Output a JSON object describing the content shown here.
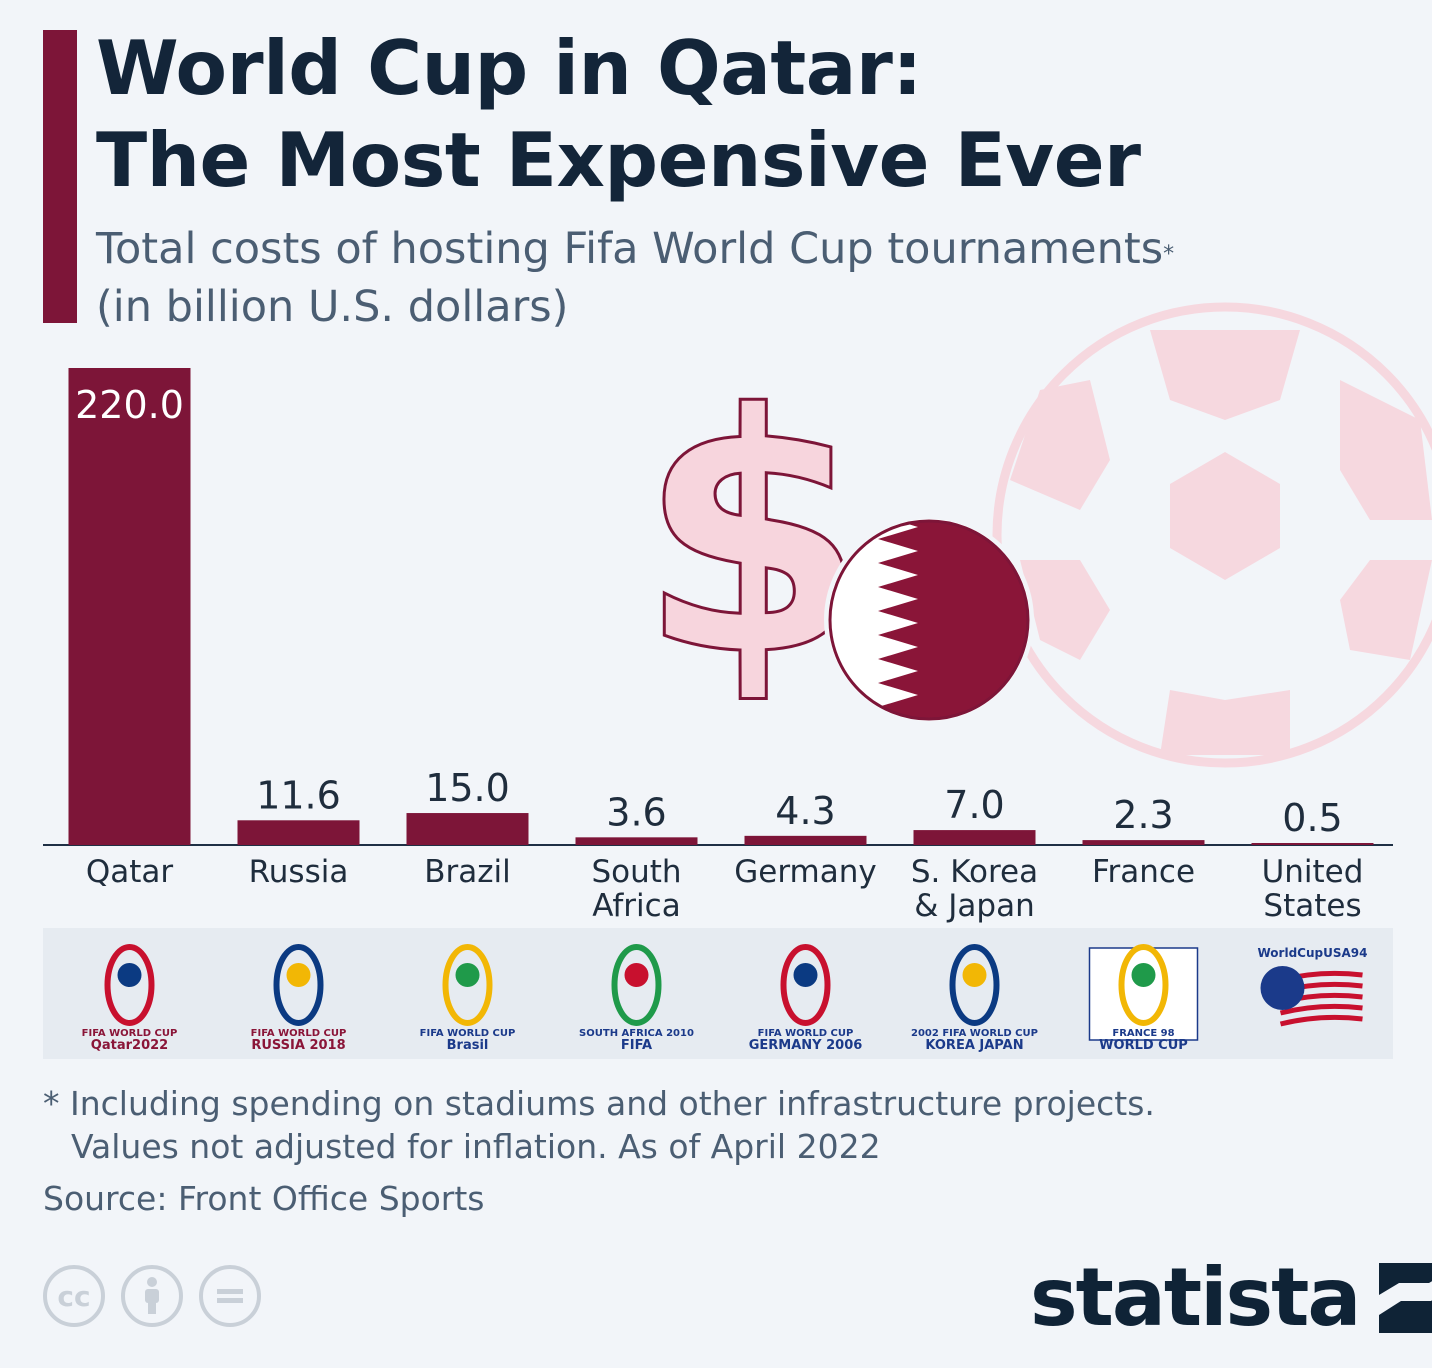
{
  "header": {
    "title_line1": "World Cup in Qatar:",
    "title_line2": "The Most Expensive Ever",
    "subtitle_line1": "Total costs of hosting Fifa World Cup tournaments",
    "subtitle_marker": "*",
    "subtitle_line2": "(in billion U.S. dollars)"
  },
  "chart_data": {
    "type": "bar",
    "title": "World Cup in Qatar: The Most Expensive Ever",
    "subtitle": "Total costs of hosting Fifa World Cup tournaments* (in billion U.S. dollars)",
    "categories": [
      [
        "Qatar"
      ],
      [
        "Russia"
      ],
      [
        "Brazil"
      ],
      [
        "South",
        "Africa"
      ],
      [
        "Germany"
      ],
      [
        "S. Korea",
        "& Japan"
      ],
      [
        "France"
      ],
      [
        "United",
        "States"
      ]
    ],
    "values": [
      220.0,
      11.6,
      15.0,
      3.6,
      4.3,
      7.0,
      2.3,
      0.5
    ],
    "value_labels": [
      "220.0",
      "11.6",
      "15.0",
      "3.6",
      "4.3",
      "7.0",
      "2.3",
      "0.5"
    ],
    "bar_color": "#7d1538",
    "axis_break_on_first_bar": true,
    "grid": false,
    "logos": [
      [
        "FIFA WORLD CUP",
        "Qatar2022"
      ],
      [
        "FIFA WORLD CUP",
        "RUSSIA 2018"
      ],
      [
        "FIFA WORLD CUP",
        "Brasil"
      ],
      [
        "SOUTH AFRICA 2010",
        "FIFA"
      ],
      [
        "FIFA WORLD CUP",
        "GERMANY 2006"
      ],
      [
        "2002 FIFA WORLD CUP",
        "KOREA JAPAN"
      ],
      [
        "FRANCE 98",
        "WORLD CUP"
      ],
      [
        "WorldCupUSA94",
        ""
      ]
    ]
  },
  "footer": {
    "note_line1": "* Including spending on stadiums and other infrastructure projects.",
    "note_line2": "Values not adjusted for inflation. As of April 2022",
    "source": "Source: Front Office Sports",
    "brand": "statista",
    "license_icons": [
      "cc-icon",
      "attribution-icon",
      "no-derivatives-icon"
    ]
  },
  "colors": {
    "accent": "#7d1538",
    "title": "#132539",
    "text": "#4b5e73",
    "background": "#f2f5f9",
    "decoration_pink": "#f7d5dd"
  }
}
